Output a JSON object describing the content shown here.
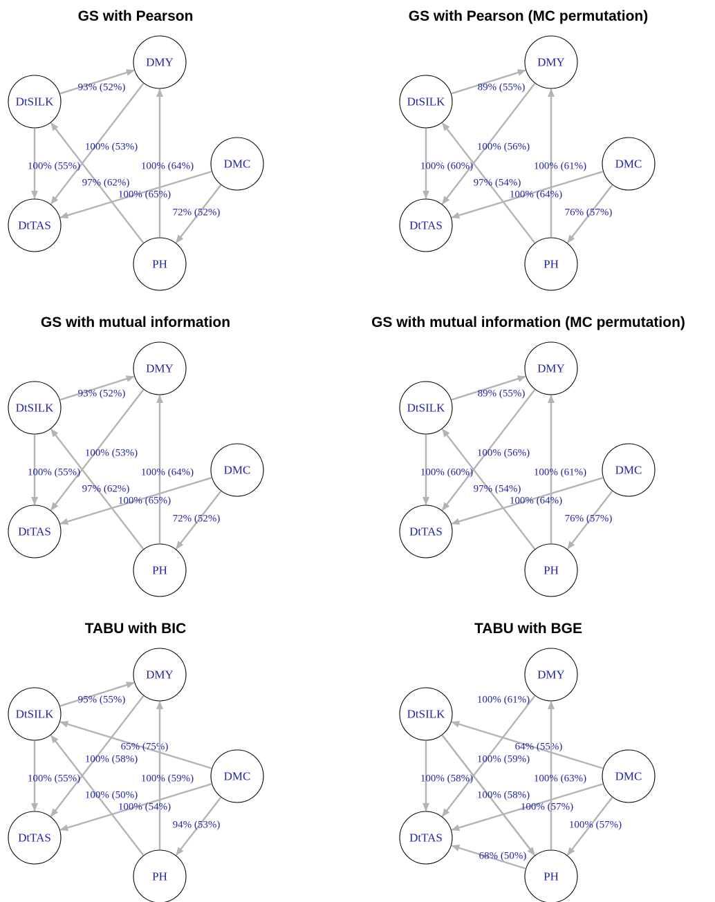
{
  "panels": [
    {
      "title": "GS with Pearson",
      "edges": [
        {
          "from": "DtSILK",
          "to": "DMY",
          "label": "93% (52%)"
        },
        {
          "from": "DMY",
          "to": "DtTAS",
          "label": "100% (53%)"
        },
        {
          "from": "DtSILK",
          "to": "DtTAS",
          "label": "100% (55%)"
        },
        {
          "from": "PH",
          "to": "DMY",
          "label": "100% (64%)"
        },
        {
          "from": "PH",
          "to": "DtSILK",
          "label": "97% (62%)"
        },
        {
          "from": "DMC",
          "to": "DtTAS",
          "label": "100% (65%)"
        },
        {
          "from": "DMC",
          "to": "PH",
          "label": "72% (52%)"
        }
      ]
    },
    {
      "title": "GS with Pearson (MC permutation)",
      "edges": [
        {
          "from": "DtSILK",
          "to": "DMY",
          "label": "89% (55%)"
        },
        {
          "from": "DMY",
          "to": "DtTAS",
          "label": "100% (56%)"
        },
        {
          "from": "DtSILK",
          "to": "DtTAS",
          "label": "100% (60%)"
        },
        {
          "from": "PH",
          "to": "DMY",
          "label": "100% (61%)"
        },
        {
          "from": "PH",
          "to": "DtSILK",
          "label": "97% (54%)"
        },
        {
          "from": "DMC",
          "to": "DtTAS",
          "label": "100% (64%)"
        },
        {
          "from": "DMC",
          "to": "PH",
          "label": "76% (57%)"
        }
      ]
    },
    {
      "title": "GS with mutual information",
      "edges": [
        {
          "from": "DtSILK",
          "to": "DMY",
          "label": "93% (52%)"
        },
        {
          "from": "DMY",
          "to": "DtTAS",
          "label": "100% (53%)"
        },
        {
          "from": "DtSILK",
          "to": "DtTAS",
          "label": "100% (55%)"
        },
        {
          "from": "PH",
          "to": "DMY",
          "label": "100% (64%)"
        },
        {
          "from": "PH",
          "to": "DtSILK",
          "label": "97% (62%)"
        },
        {
          "from": "DMC",
          "to": "DtTAS",
          "label": "100% (65%)"
        },
        {
          "from": "DMC",
          "to": "PH",
          "label": "72% (52%)"
        }
      ]
    },
    {
      "title": "GS with mutual information (MC permutation)",
      "edges": [
        {
          "from": "DtSILK",
          "to": "DMY",
          "label": "89% (55%)"
        },
        {
          "from": "DMY",
          "to": "DtTAS",
          "label": "100% (56%)"
        },
        {
          "from": "DtSILK",
          "to": "DtTAS",
          "label": "100% (60%)"
        },
        {
          "from": "PH",
          "to": "DMY",
          "label": "100% (61%)"
        },
        {
          "from": "PH",
          "to": "DtSILK",
          "label": "97% (54%)"
        },
        {
          "from": "DMC",
          "to": "DtTAS",
          "label": "100% (64%)"
        },
        {
          "from": "DMC",
          "to": "PH",
          "label": "76% (57%)"
        }
      ]
    },
    {
      "title": "TABU with BIC",
      "edges": [
        {
          "from": "DtSILK",
          "to": "DMY",
          "label": "95% (55%)"
        },
        {
          "from": "DMC",
          "to": "DtSILK",
          "label": "65% (75%)"
        },
        {
          "from": "DMY",
          "to": "DtTAS",
          "label": "100% (58%)"
        },
        {
          "from": "DtSILK",
          "to": "DtTAS",
          "label": "100% (55%)"
        },
        {
          "from": "PH",
          "to": "DMY",
          "label": "100% (59%)"
        },
        {
          "from": "PH",
          "to": "DtSILK",
          "label": "100% (50%)"
        },
        {
          "from": "DMC",
          "to": "DtTAS",
          "label": "100% (54%)"
        },
        {
          "from": "DMC",
          "to": "PH",
          "label": "94% (53%)"
        }
      ]
    },
    {
      "title": "TABU with BGE",
      "edges": [
        {
          "from": "DMY",
          "to": "DtTAS",
          "label": "100% (61%)"
        },
        {
          "from": "DMC",
          "to": "DtSILK",
          "label": "64% (55%)"
        },
        {
          "from": "DtSILK",
          "to": "PH",
          "label": "100% (59%)"
        },
        {
          "from": "DtSILK",
          "to": "DtTAS",
          "label": "100% (58%)"
        },
        {
          "from": "PH",
          "to": "DMY",
          "label": "100% (63%)"
        },
        {
          "from": "DtSILK",
          "to": "PH",
          "label": "100% (58%)"
        },
        {
          "from": "DMC",
          "to": "DtTAS",
          "label": "100% (57%)"
        },
        {
          "from": "DMC",
          "to": "PH",
          "label": "100% (57%)"
        },
        {
          "from": "PH",
          "to": "DtTAS",
          "label": "68% (50%)"
        }
      ]
    }
  ],
  "nodes": [
    "DMY",
    "DtSILK",
    "DMC",
    "DtTAS",
    "PH"
  ],
  "colors": {
    "edge": "#b4b4b4",
    "node_label": "#2323a8",
    "edge_label": "#2323a8",
    "node_border": "#000000",
    "title": "#000000"
  }
}
